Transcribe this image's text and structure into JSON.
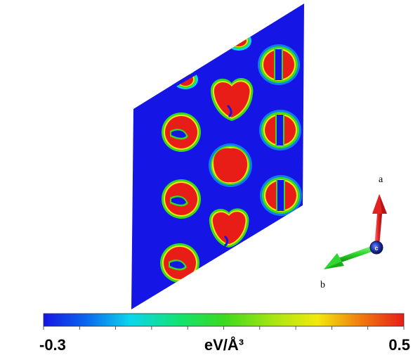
{
  "colorbar": {
    "min_label": "-0.3",
    "max_label": "0.5",
    "unit_label": "eV/Å³",
    "min": -0.3,
    "max": 0.5,
    "tick_count": 11,
    "colors": [
      "#1515e6",
      "#0a68ee",
      "#0ad6ee",
      "#12e36d",
      "#3ad91f",
      "#a8e611",
      "#f2e90a",
      "#f07b0d",
      "#e81d17"
    ]
  },
  "axes": {
    "a_label": "a",
    "b_label": "b",
    "c_label": "c",
    "a_color": "#e32222",
    "b_color": "#2ed82e",
    "c_color": "#1c2fa3"
  },
  "slab": {
    "background_color": "#1515e6"
  }
}
